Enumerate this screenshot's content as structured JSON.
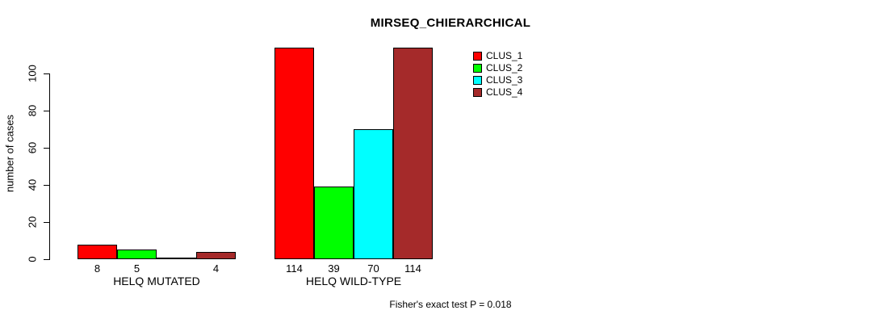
{
  "chart_data": {
    "type": "bar",
    "title": "MIRSEQ_CHIERARCHICAL",
    "ylabel": "number of cases",
    "xlabel": "",
    "categories": [
      "HELQ MUTATED",
      "HELQ WILD-TYPE"
    ],
    "series": [
      {
        "name": "CLUS_1",
        "color": "#FF0000",
        "values": [
          8,
          114
        ]
      },
      {
        "name": "CLUS_2",
        "color": "#00FF00",
        "values": [
          5,
          39
        ]
      },
      {
        "name": "CLUS_3",
        "color": "#00FFFF",
        "values": [
          0,
          70
        ]
      },
      {
        "name": "CLUS_4",
        "color": "#A52A2A",
        "values": [
          4,
          114
        ]
      }
    ],
    "bar_value_labels": [
      [
        "8",
        "5",
        "",
        "4"
      ],
      [
        "114",
        "39",
        "70",
        "114"
      ]
    ],
    "yticks": [
      0,
      20,
      40,
      60,
      80,
      100
    ],
    "ylim": [
      0,
      114
    ],
    "grid": false,
    "legend_position": "upper-right-of-bars",
    "legend_entries": [
      "CLUS_1",
      "CLUS_2",
      "CLUS_3",
      "CLUS_4"
    ],
    "annotation": "Fisher's exact test P = 0.018",
    "axis_color": "#000000",
    "background_color": "#FFFFFF"
  }
}
